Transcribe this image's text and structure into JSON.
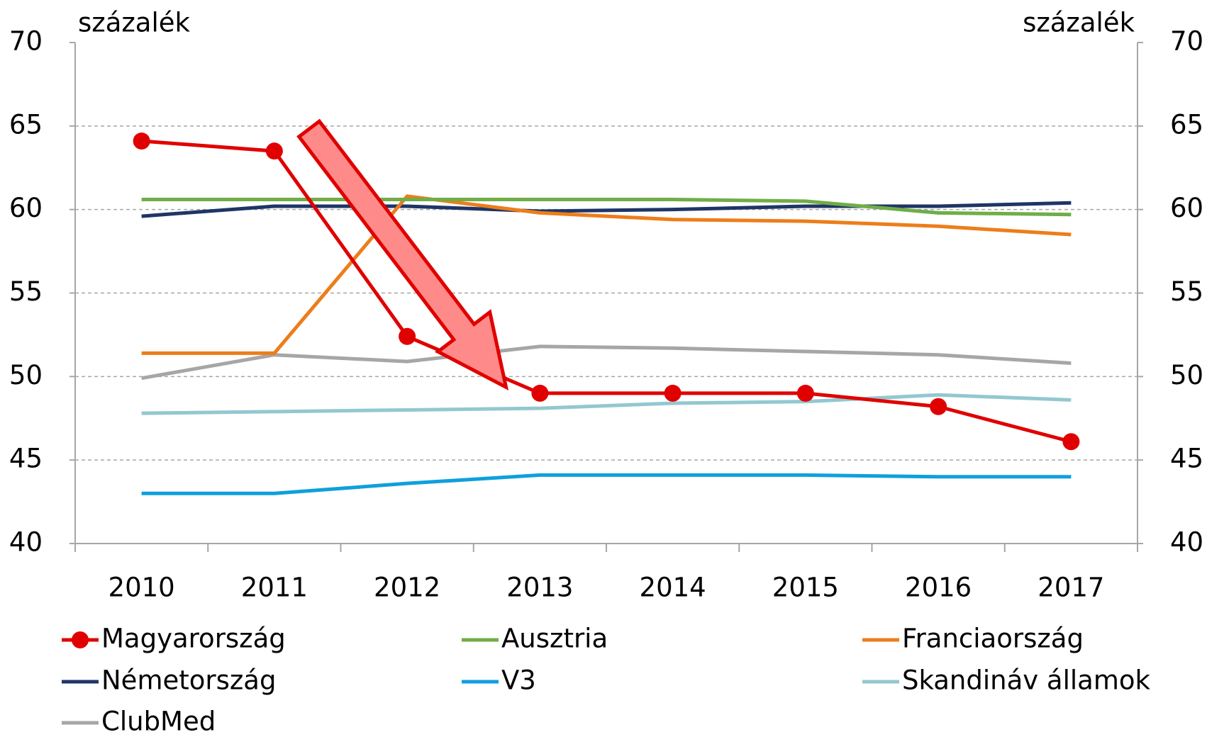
{
  "chart_data": {
    "type": "line",
    "y_label": "százalék",
    "y2_label": "százalék",
    "categories": [
      "2010",
      "2011",
      "2012",
      "2013",
      "2014",
      "2015",
      "2016",
      "2017"
    ],
    "series": [
      {
        "name": "Magyarország",
        "color": "#e00000",
        "marker": "circle",
        "values": [
          64.1,
          63.5,
          52.4,
          49.0,
          49.0,
          49.0,
          48.2,
          46.1
        ]
      },
      {
        "name": "Ausztria",
        "color": "#70ad47",
        "values": [
          60.6,
          60.6,
          60.6,
          60.6,
          60.6,
          60.5,
          59.8,
          59.7
        ]
      },
      {
        "name": "Franciaország",
        "color": "#ed7d1a",
        "values": [
          51.4,
          51.4,
          60.8,
          59.8,
          59.4,
          59.3,
          59.0,
          58.5
        ]
      },
      {
        "name": "Németország",
        "color": "#1f3566",
        "values": [
          59.6,
          60.2,
          60.2,
          59.9,
          60.0,
          60.2,
          60.2,
          60.4
        ]
      },
      {
        "name": "V3",
        "color": "#0ea0dc",
        "values": [
          43.0,
          43.0,
          43.6,
          44.1,
          44.1,
          44.1,
          44.0,
          44.0
        ]
      },
      {
        "name": "Skandináv államok",
        "color": "#92c8d0",
        "values": [
          47.8,
          47.9,
          48.0,
          48.1,
          48.4,
          48.5,
          48.9,
          48.6
        ]
      },
      {
        "name": "ClubMed",
        "color": "#a6a6a6",
        "values": [
          49.9,
          51.3,
          50.9,
          51.8,
          51.7,
          51.5,
          51.3,
          50.8
        ]
      }
    ],
    "ylim": [
      40,
      70
    ],
    "yticks": [
      40,
      45,
      50,
      55,
      60,
      65,
      70
    ],
    "y2lim": [
      40,
      70
    ],
    "y2ticks": [
      40,
      45,
      50,
      55,
      60,
      65,
      70
    ],
    "grid": true,
    "legend": "bottom"
  }
}
